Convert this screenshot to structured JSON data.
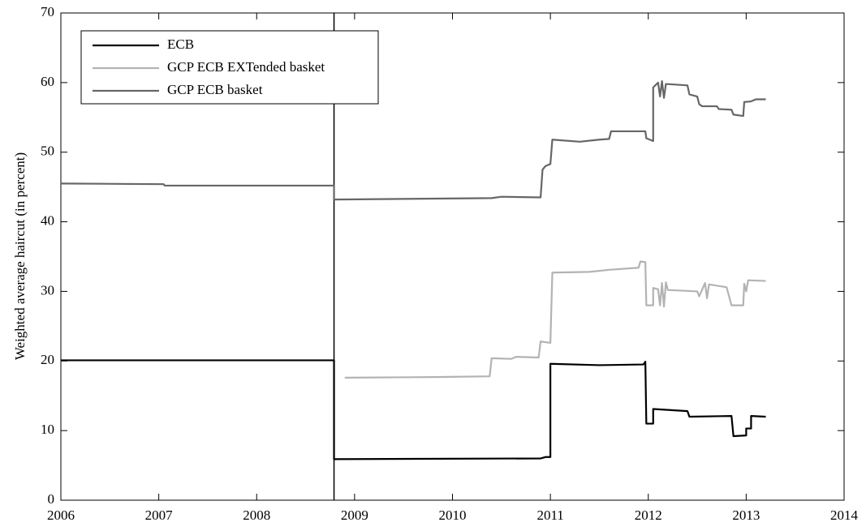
{
  "chart_data": {
    "type": "line",
    "ylabel": "Weighted average haircut (in percent)",
    "xlim": [
      2006,
      2014
    ],
    "xticks": [
      2006,
      2007,
      2008,
      2009,
      2010,
      2011,
      2012,
      2013,
      2014
    ],
    "ylim": [
      0,
      70
    ],
    "yticks": [
      0,
      10,
      20,
      30,
      40,
      50,
      60,
      70
    ],
    "grid": false,
    "legend": "upper left",
    "vline": 2008.79,
    "series": [
      {
        "name": "ECB",
        "color": "#000000",
        "x": [
          2006,
          2008.79,
          2008.79,
          2010.9,
          2010.95,
          2011.0,
          2011.0,
          2011.5,
          2011.95,
          2011.97,
          2011.98,
          2012.05,
          2012.05,
          2012.4,
          2012.42,
          2012.85,
          2012.87,
          2013.0,
          2013.0,
          2013.05,
          2013.05,
          2013.2
        ],
        "values": [
          20.1,
          20.1,
          5.9,
          6.0,
          6.2,
          6.2,
          19.6,
          19.4,
          19.5,
          19.9,
          11.0,
          11.0,
          13.1,
          12.8,
          12.0,
          12.1,
          9.2,
          9.3,
          10.3,
          10.3,
          12.1,
          12.0
        ]
      },
      {
        "name": "GCP ECB EXTended basket",
        "color": "#b3b3b3",
        "x": [
          2008.9,
          2009.9,
          2010.38,
          2010.4,
          2010.6,
          2010.65,
          2010.88,
          2010.9,
          2011.0,
          2011.02,
          2011.4,
          2011.6,
          2011.9,
          2011.92,
          2011.97,
          2011.98,
          2012.05,
          2012.05,
          2012.1,
          2012.12,
          2012.14,
          2012.16,
          2012.18,
          2012.2,
          2012.5,
          2012.52,
          2012.58,
          2012.6,
          2012.62,
          2012.8,
          2012.85,
          2012.97,
          2012.98,
          2013.0,
          2013.02,
          2013.2
        ],
        "values": [
          17.6,
          17.7,
          17.8,
          20.4,
          20.3,
          20.6,
          20.5,
          22.8,
          22.6,
          32.7,
          32.8,
          33.1,
          33.4,
          34.3,
          34.2,
          28.0,
          28.0,
          30.5,
          30.3,
          28.0,
          31.2,
          27.8,
          31.3,
          30.2,
          30.0,
          29.3,
          31.2,
          29.0,
          31.0,
          30.6,
          28.0,
          28.0,
          31.1,
          30.0,
          31.6,
          31.5
        ]
      },
      {
        "name": "GCP ECB basket",
        "color": "#666666",
        "x": [
          2006,
          2007.05,
          2007.06,
          2008.79,
          2008.79,
          2010.4,
          2010.5,
          2010.9,
          2010.92,
          2010.95,
          2011.0,
          2011.02,
          2011.3,
          2011.5,
          2011.6,
          2011.62,
          2011.97,
          2011.98,
          2012.05,
          2012.05,
          2012.1,
          2012.12,
          2012.14,
          2012.16,
          2012.18,
          2012.4,
          2012.42,
          2012.5,
          2012.52,
          2012.55,
          2012.7,
          2012.72,
          2012.85,
          2012.87,
          2012.97,
          2012.98,
          2013.05,
          2013.1,
          2013.2
        ],
        "values": [
          45.5,
          45.4,
          45.2,
          45.2,
          43.2,
          43.4,
          43.6,
          43.5,
          47.5,
          48.0,
          48.3,
          51.8,
          51.5,
          51.8,
          51.9,
          53.0,
          53.0,
          52.0,
          51.6,
          59.3,
          60.0,
          58.0,
          60.2,
          57.8,
          59.8,
          59.6,
          58.3,
          58.0,
          56.9,
          56.6,
          56.6,
          56.2,
          56.1,
          55.4,
          55.2,
          57.2,
          57.3,
          57.6,
          57.6
        ]
      }
    ]
  }
}
